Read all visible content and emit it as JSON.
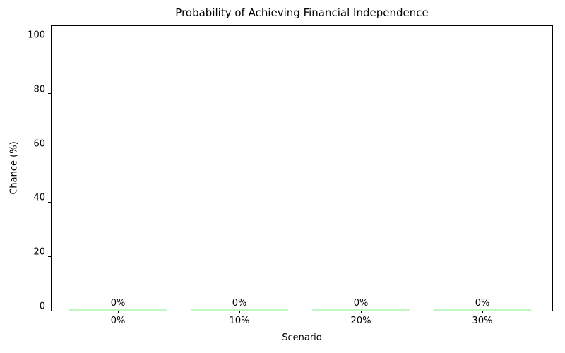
{
  "chart_data": {
    "type": "bar",
    "title": "Probability of Achieving Financial Independence",
    "xlabel": "Scenario",
    "ylabel": "Chance (%)",
    "categories": [
      "0%",
      "10%",
      "20%",
      "30%"
    ],
    "values": [
      0,
      0,
      0,
      0
    ],
    "bar_labels": [
      "0%",
      "0%",
      "0%",
      "0%"
    ],
    "bar_color": "#90ee90",
    "axis_color": "#000000",
    "text_color": "#000000",
    "background": "#ffffff",
    "ylim": [
      0,
      105
    ],
    "yticks": [
      0,
      20,
      40,
      60,
      80,
      100
    ],
    "grid": false,
    "legend_position": "none"
  }
}
